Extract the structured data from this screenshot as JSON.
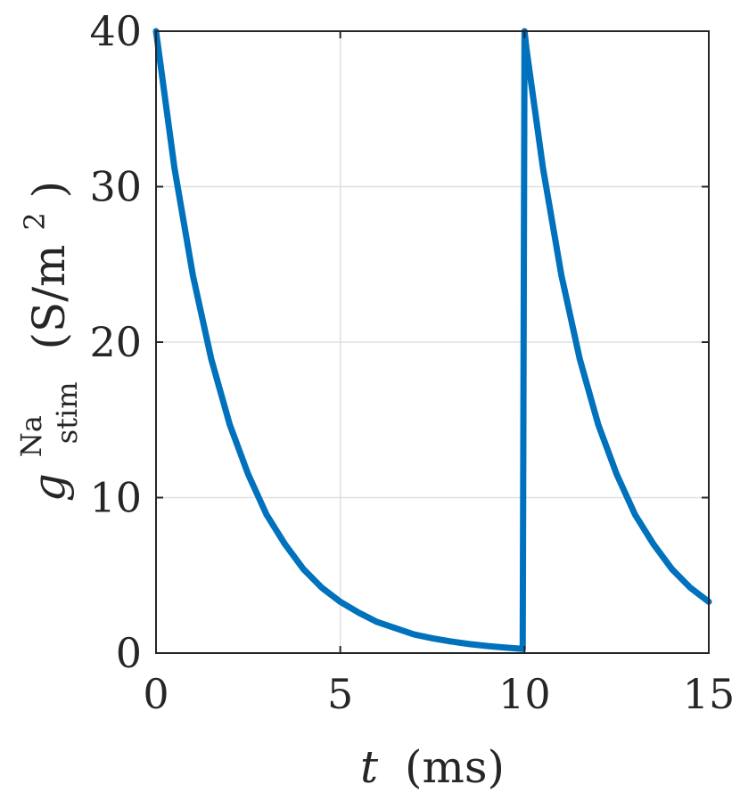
{
  "chart_data": {
    "type": "line",
    "xlabel": {
      "symbol": "t",
      "unit": "(ms)"
    },
    "ylabel": {
      "symbol": "g",
      "superscript": "Na",
      "subscript": "stim",
      "unit": "(S/m",
      "unit_power": "2",
      "unit_close": ")"
    },
    "xlim": [
      0,
      15
    ],
    "ylim": [
      0,
      40
    ],
    "xticks": [
      0,
      5,
      10,
      15
    ],
    "xtick_labels": [
      "0",
      "5",
      "10",
      "15"
    ],
    "yticks": [
      0,
      10,
      20,
      30,
      40
    ],
    "ytick_labels": [
      "0",
      "10",
      "20",
      "30",
      "40"
    ],
    "grid": true,
    "series": [
      {
        "color": "#0072BD",
        "x": [
          0,
          0.5,
          1,
          1.5,
          2,
          2.5,
          3,
          3.5,
          4,
          4.5,
          5,
          5.5,
          6,
          6.5,
          7,
          7.5,
          8,
          8.5,
          9,
          9.5,
          9.95,
          10.0,
          10.05,
          10.5,
          11,
          11.5,
          12,
          12.5,
          13,
          13.5,
          14,
          14.5,
          15
        ],
        "y": [
          40,
          31.2,
          24.3,
          18.9,
          14.7,
          11.5,
          8.9,
          7.0,
          5.4,
          4.2,
          3.3,
          2.6,
          2.0,
          1.6,
          1.2,
          0.95,
          0.75,
          0.58,
          0.45,
          0.35,
          0.27,
          40,
          38.9,
          31.2,
          24.3,
          18.9,
          14.7,
          11.5,
          8.9,
          7.0,
          5.4,
          4.2,
          3.3
        ]
      }
    ]
  }
}
